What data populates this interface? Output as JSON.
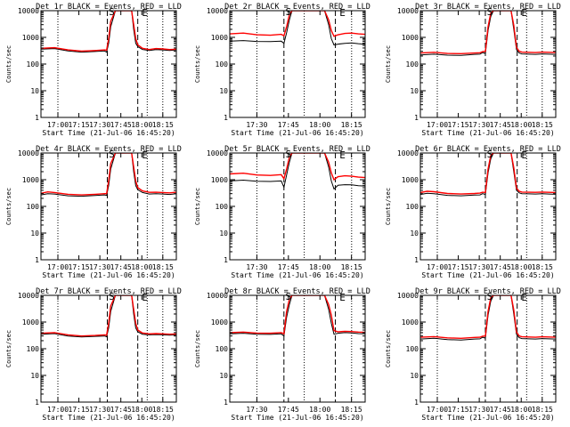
{
  "figure": {
    "y_ticks": [
      "1",
      "10",
      "100",
      "1000",
      "10000"
    ],
    "ylabel": "Counts/sec",
    "xlabel": "Start Time (21-Jul-06 16:45:20)",
    "annotations": {
      "saa": "S",
      "eclipse": "E"
    }
  },
  "chart_data": [
    {
      "type": "line",
      "title": "Det 1r BLACK = Events, RED = LLD",
      "x_ticks": [
        "17:00",
        "17:15",
        "17:30",
        "17:45",
        "18:00",
        "18:15"
      ],
      "xlim": [
        0,
        100
      ],
      "ylim": [
        1,
        10000
      ],
      "yscale": "log",
      "vlines_dotted": [
        12.5,
        78.5,
        90
      ],
      "vlines_dashed": [
        49,
        71.5
      ],
      "series": [
        {
          "color": "#000000",
          "x": [
            0,
            10,
            20,
            30,
            40,
            47,
            48.5,
            50,
            51.5,
            55,
            67,
            68.5,
            70,
            71.5,
            75,
            80,
            85,
            90,
            95,
            100
          ],
          "y": [
            360,
            380,
            310,
            280,
            295,
            310,
            280,
            600,
            2500,
            10000,
            10000,
            2000,
            600,
            450,
            350,
            320,
            350,
            340,
            320,
            340
          ]
        },
        {
          "color": "#ff0000",
          "x": [
            0,
            10,
            20,
            30,
            40,
            47,
            48.5,
            50,
            51.5,
            55,
            67,
            68.5,
            70,
            71.5,
            75,
            80,
            85,
            90,
            95,
            100
          ],
          "y": [
            390,
            410,
            340,
            305,
            320,
            340,
            330,
            900,
            4000,
            10000,
            10000,
            3000,
            900,
            520,
            390,
            350,
            380,
            370,
            350,
            360
          ]
        }
      ]
    },
    {
      "type": "line",
      "title": "Det 2r BLACK = Events, RED = LLD",
      "x_ticks": [
        "17:30",
        "17:45",
        "18:00",
        "18:15"
      ],
      "xlim": [
        0,
        100
      ],
      "ylim": [
        1,
        10000
      ],
      "yscale": "log",
      "vlines_dotted": [
        20,
        55,
        90
      ],
      "vlines_dashed": [
        40,
        78
      ],
      "series": [
        {
          "color": "#000000",
          "x": [
            0,
            10,
            20,
            30,
            38,
            40,
            42,
            44,
            46,
            48,
            70,
            73,
            75,
            77,
            80,
            85,
            90,
            95,
            100
          ],
          "y": [
            720,
            760,
            700,
            690,
            720,
            600,
            1500,
            4500,
            10000,
            10000,
            10000,
            3000,
            900,
            520,
            560,
            600,
            620,
            580,
            550
          ]
        },
        {
          "color": "#ff0000",
          "x": [
            0,
            10,
            20,
            30,
            38,
            40,
            42,
            44,
            46,
            48,
            70,
            73,
            75,
            77,
            80,
            85,
            90,
            95,
            100
          ],
          "y": [
            1350,
            1450,
            1250,
            1200,
            1300,
            1150,
            2500,
            7000,
            10000,
            10000,
            10000,
            4500,
            1800,
            1100,
            1250,
            1400,
            1450,
            1350,
            1300
          ]
        }
      ]
    },
    {
      "type": "line",
      "title": "Det 3r BLACK = Events, RED = LLD",
      "x_ticks": [
        "17:00",
        "17:15",
        "17:30",
        "17:45",
        "18:00",
        "18:15"
      ],
      "xlim": [
        0,
        100
      ],
      "ylim": [
        1,
        10000
      ],
      "yscale": "log",
      "vlines_dotted": [
        12.5,
        78.5,
        90
      ],
      "vlines_dashed": [
        48,
        71.5
      ],
      "series": [
        {
          "color": "#000000",
          "x": [
            0,
            10,
            20,
            30,
            40,
            44,
            46,
            48,
            50,
            52,
            54,
            67,
            69,
            71,
            73,
            75,
            80,
            85,
            90,
            95,
            100
          ],
          "y": [
            220,
            235,
            215,
            210,
            230,
            235,
            270,
            250,
            1800,
            6000,
            10000,
            10000,
            2000,
            350,
            260,
            240,
            235,
            230,
            240,
            235,
            230
          ]
        },
        {
          "color": "#ff0000",
          "x": [
            0,
            10,
            20,
            30,
            40,
            44,
            46,
            48,
            50,
            52,
            54,
            67,
            69,
            71,
            73,
            75,
            80,
            85,
            90,
            95,
            100
          ],
          "y": [
            260,
            275,
            250,
            245,
            260,
            265,
            290,
            300,
            2500,
            8000,
            10000,
            10000,
            2800,
            420,
            300,
            280,
            275,
            270,
            280,
            275,
            270
          ]
        }
      ]
    },
    {
      "type": "line",
      "title": "Det 4r BLACK = Events, RED = LLD",
      "x_ticks": [
        "17:00",
        "17:15",
        "17:30",
        "17:45",
        "18:00",
        "18:15"
      ],
      "xlim": [
        0,
        100
      ],
      "ylim": [
        1,
        10000
      ],
      "yscale": "log",
      "vlines_dotted": [
        12.5,
        78.5,
        90
      ],
      "vlines_dashed": [
        49,
        71.5
      ],
      "series": [
        {
          "color": "#000000",
          "x": [
            0,
            5,
            10,
            20,
            30,
            40,
            47,
            48.5,
            50,
            51.5,
            55,
            67,
            68.5,
            70,
            71.5,
            75,
            80,
            85,
            90,
            95,
            100
          ],
          "y": [
            270,
            300,
            290,
            250,
            240,
            255,
            270,
            260,
            600,
            2500,
            10000,
            10000,
            2000,
            600,
            420,
            330,
            290,
            300,
            290,
            280,
            300
          ]
        },
        {
          "color": "#ff0000",
          "x": [
            0,
            5,
            10,
            20,
            30,
            40,
            47,
            48.5,
            50,
            51.5,
            55,
            67,
            68.5,
            70,
            71.5,
            75,
            80,
            85,
            90,
            95,
            100
          ],
          "y": [
            310,
            350,
            330,
            285,
            270,
            285,
            300,
            300,
            900,
            4000,
            10000,
            10000,
            3000,
            900,
            500,
            380,
            335,
            340,
            330,
            320,
            340
          ]
        }
      ]
    },
    {
      "type": "line",
      "title": "Det 5r BLACK = Events, RED = LLD",
      "x_ticks": [
        "17:30",
        "17:45",
        "18:00",
        "18:15"
      ],
      "xlim": [
        0,
        100
      ],
      "ylim": [
        1,
        10000
      ],
      "yscale": "log",
      "vlines_dotted": [
        20,
        55,
        90
      ],
      "vlines_dashed": [
        40,
        78
      ],
      "series": [
        {
          "color": "#000000",
          "x": [
            0,
            10,
            20,
            30,
            38,
            40,
            42,
            44,
            46,
            48,
            70,
            73,
            75,
            77,
            80,
            85,
            90,
            95,
            100
          ],
          "y": [
            900,
            960,
            880,
            860,
            900,
            520,
            1500,
            4500,
            10000,
            10000,
            10000,
            3000,
            900,
            450,
            620,
            650,
            640,
            600,
            580
          ]
        },
        {
          "color": "#ff0000",
          "x": [
            0,
            10,
            20,
            30,
            38,
            40,
            42,
            44,
            46,
            48,
            70,
            73,
            75,
            77,
            80,
            85,
            90,
            95,
            100
          ],
          "y": [
            1650,
            1750,
            1500,
            1450,
            1550,
            1100,
            2500,
            7000,
            10000,
            10000,
            10000,
            4500,
            1800,
            1000,
            1300,
            1400,
            1350,
            1250,
            1200
          ]
        }
      ]
    },
    {
      "type": "line",
      "title": "Det 6r BLACK = Events, RED = LLD",
      "x_ticks": [
        "17:00",
        "17:15",
        "17:30",
        "17:45",
        "18:00",
        "18:15"
      ],
      "xlim": [
        0,
        100
      ],
      "ylim": [
        1,
        10000
      ],
      "yscale": "log",
      "vlines_dotted": [
        12.5,
        78.5,
        90
      ],
      "vlines_dashed": [
        48,
        71.5
      ],
      "series": [
        {
          "color": "#000000",
          "x": [
            0,
            5,
            10,
            20,
            30,
            40,
            44,
            46,
            48,
            50,
            52,
            54,
            67,
            69,
            71,
            73,
            75,
            80,
            85,
            90,
            95,
            100
          ],
          "y": [
            280,
            310,
            300,
            260,
            250,
            265,
            270,
            300,
            280,
            1800,
            6000,
            10000,
            10000,
            2000,
            400,
            320,
            300,
            295,
            290,
            300,
            290,
            285
          ]
        },
        {
          "color": "#ff0000",
          "x": [
            0,
            5,
            10,
            20,
            30,
            40,
            44,
            46,
            48,
            50,
            52,
            54,
            67,
            69,
            71,
            73,
            75,
            80,
            85,
            90,
            95,
            100
          ],
          "y": [
            330,
            370,
            355,
            305,
            290,
            305,
            315,
            340,
            330,
            2500,
            8000,
            10000,
            10000,
            2800,
            480,
            370,
            345,
            340,
            335,
            345,
            335,
            330
          ]
        }
      ]
    },
    {
      "type": "line",
      "title": "Det 7r BLACK = Events, RED = LLD",
      "x_ticks": [
        "17:00",
        "17:15",
        "17:30",
        "17:45",
        "18:00",
        "18:15"
      ],
      "xlim": [
        0,
        100
      ],
      "ylim": [
        1,
        10000
      ],
      "yscale": "log",
      "vlines_dotted": [
        12.5,
        78.5,
        90
      ],
      "vlines_dashed": [
        49,
        71.5
      ],
      "series": [
        {
          "color": "#000000",
          "x": [
            0,
            10,
            20,
            30,
            40,
            47,
            48.5,
            50,
            51.5,
            55,
            67,
            68.5,
            70,
            71.5,
            75,
            80,
            85,
            90,
            95,
            100
          ],
          "y": [
            350,
            370,
            300,
            275,
            290,
            300,
            280,
            600,
            2500,
            10000,
            10000,
            2000,
            600,
            430,
            350,
            330,
            340,
            330,
            320,
            330
          ]
        },
        {
          "color": "#ff0000",
          "x": [
            0,
            10,
            20,
            30,
            40,
            47,
            48.5,
            50,
            51.5,
            55,
            67,
            68.5,
            70,
            71.5,
            75,
            80,
            85,
            90,
            95,
            100
          ],
          "y": [
            380,
            400,
            330,
            300,
            315,
            330,
            320,
            900,
            4000,
            10000,
            10000,
            3000,
            900,
            500,
            390,
            360,
            370,
            360,
            350,
            355
          ]
        }
      ]
    },
    {
      "type": "line",
      "title": "Det 8r BLACK = Events, RED = LLD",
      "x_ticks": [
        "17:30",
        "17:45",
        "18:00",
        "18:15"
      ],
      "xlim": [
        0,
        100
      ],
      "ylim": [
        1,
        10000
      ],
      "yscale": "log",
      "vlines_dotted": [
        20,
        55,
        90
      ],
      "vlines_dashed": [
        40,
        78
      ],
      "series": [
        {
          "color": "#000000",
          "x": [
            0,
            10,
            20,
            30,
            38,
            40,
            42,
            44,
            46,
            48,
            70,
            73,
            75,
            77,
            80,
            85,
            90,
            95,
            100
          ],
          "y": [
            360,
            380,
            350,
            345,
            360,
            300,
            1500,
            4500,
            10000,
            10000,
            10000,
            3000,
            900,
            350,
            380,
            400,
            390,
            370,
            360
          ]
        },
        {
          "color": "#ff0000",
          "x": [
            0,
            10,
            20,
            30,
            38,
            40,
            42,
            44,
            46,
            48,
            70,
            73,
            75,
            77,
            80,
            85,
            90,
            95,
            100
          ],
          "y": [
            400,
            420,
            385,
            380,
            400,
            360,
            2500,
            7000,
            10000,
            10000,
            10000,
            4500,
            1800,
            480,
            430,
            450,
            440,
            420,
            410
          ]
        }
      ]
    },
    {
      "type": "line",
      "title": "Det 9r BLACK = Events, RED = LLD",
      "x_ticks": [
        "17:00",
        "17:15",
        "17:30",
        "17:45",
        "18:00",
        "18:15"
      ],
      "xlim": [
        0,
        100
      ],
      "ylim": [
        1,
        10000
      ],
      "yscale": "log",
      "vlines_dotted": [
        12.5,
        78.5,
        90
      ],
      "vlines_dashed": [
        48,
        71.5
      ],
      "series": [
        {
          "color": "#000000",
          "x": [
            0,
            10,
            20,
            30,
            40,
            44,
            46,
            48,
            50,
            52,
            54,
            67,
            69,
            71,
            73,
            75,
            80,
            85,
            90,
            95,
            100
          ],
          "y": [
            230,
            245,
            220,
            210,
            230,
            235,
            270,
            250,
            1800,
            6000,
            10000,
            10000,
            2000,
            350,
            260,
            240,
            235,
            230,
            240,
            235,
            230
          ]
        },
        {
          "color": "#ff0000",
          "x": [
            0,
            10,
            20,
            30,
            40,
            44,
            46,
            48,
            50,
            52,
            54,
            67,
            69,
            71,
            73,
            75,
            80,
            85,
            90,
            95,
            100
          ],
          "y": [
            270,
            285,
            255,
            245,
            265,
            270,
            295,
            300,
            2500,
            8000,
            10000,
            10000,
            2800,
            420,
            300,
            280,
            275,
            270,
            280,
            275,
            270
          ]
        }
      ]
    }
  ]
}
